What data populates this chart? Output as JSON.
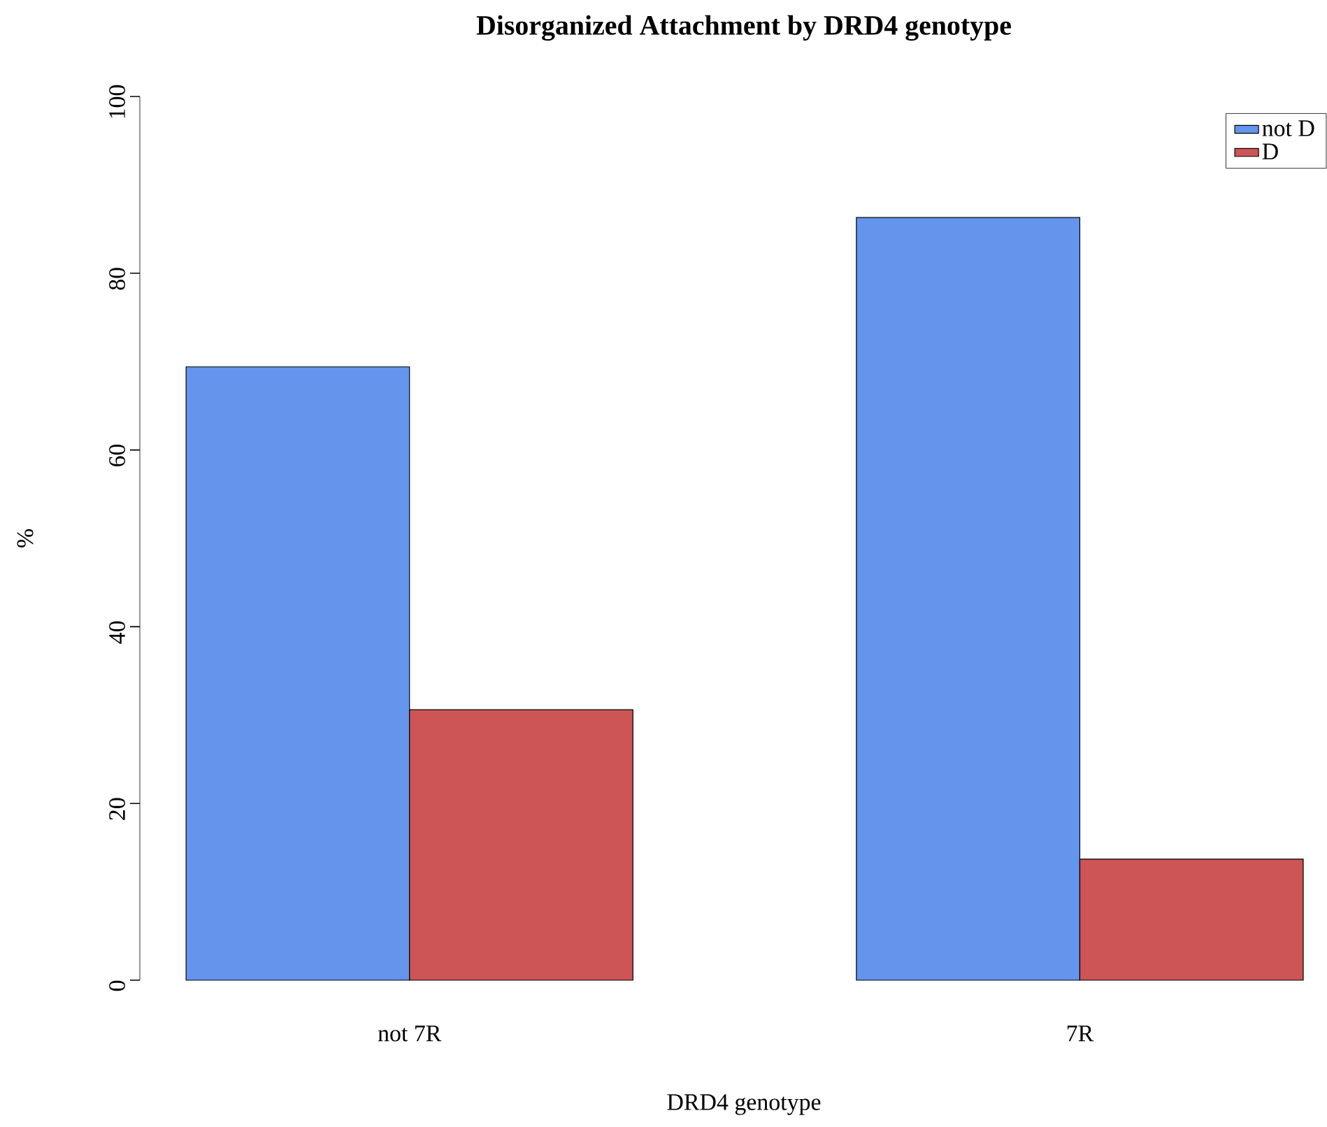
{
  "chart_data": {
    "type": "bar",
    "title": "Disorganized Attachment by DRD4 genotype",
    "xlabel": "DRD4 genotype",
    "ylabel": "%",
    "categories": [
      "not 7R",
      "7R"
    ],
    "series": [
      {
        "name": "not D",
        "color": "#6495ed",
        "values": [
          69.4,
          86.3
        ]
      },
      {
        "name": "D",
        "color": "#cd5555",
        "values": [
          30.6,
          13.7
        ]
      }
    ],
    "ylim": [
      0,
      100
    ],
    "yticks": [
      0,
      20,
      40,
      60,
      80,
      100
    ],
    "legend": "top right"
  }
}
